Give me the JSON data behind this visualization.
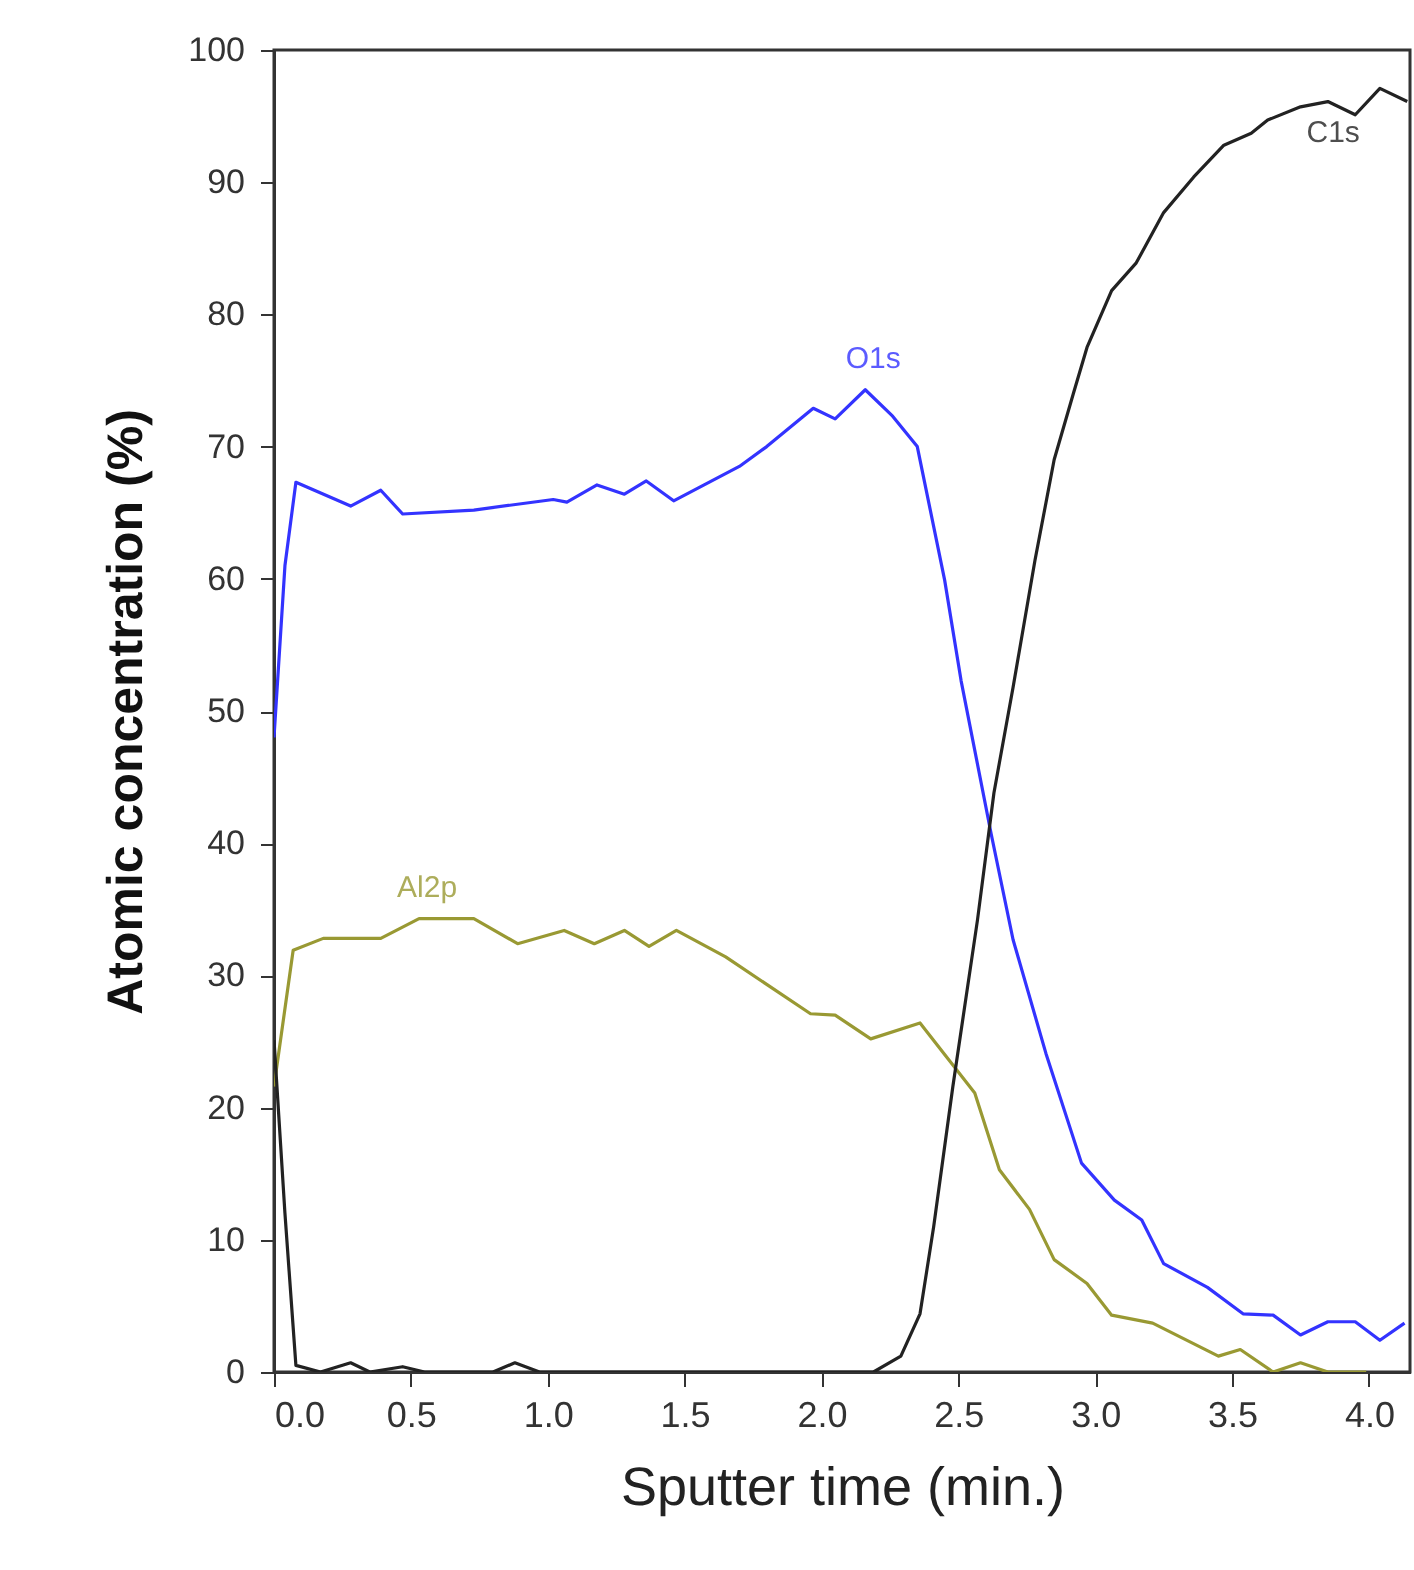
{
  "chart_data": {
    "type": "line",
    "xlabel": "Sputter time (min.)",
    "ylabel": "Atomic concentration (%)",
    "xlim": [
      0,
      4.15
    ],
    "ylim": [
      0,
      100
    ],
    "xticks": [
      {
        "value": 0,
        "label": "0.0"
      },
      0.5,
      {
        "value": 1,
        "label": "1.0"
      },
      1.5,
      {
        "value": 2,
        "label": "2.0"
      },
      2.5,
      {
        "value": 3,
        "label": "3.0"
      },
      3.5,
      {
        "value": 4,
        "label": "4.0"
      }
    ],
    "yticks": [
      0,
      10,
      20,
      30,
      40,
      50,
      60,
      70,
      80,
      90,
      100
    ],
    "grid": false,
    "series": [
      {
        "name": "O1s",
        "color": "#3333ff",
        "x": [
          0,
          0.04,
          0.08,
          0.28,
          0.39,
          0.47,
          0.73,
          1.02,
          1.07,
          1.18,
          1.28,
          1.36,
          1.46,
          1.7,
          1.8,
          1.97,
          2.05,
          2.16,
          2.26,
          2.35,
          2.45,
          2.51,
          2.62,
          2.7,
          2.82,
          2.95,
          3.07,
          3.17,
          3.25,
          3.41,
          3.54,
          3.65,
          3.75,
          3.85,
          3.95,
          4.04,
          4.13
        ],
        "values": [
          48,
          61,
          67.3,
          65.5,
          66.7,
          64.9,
          65.2,
          66,
          65.8,
          67.1,
          66.4,
          67.4,
          65.9,
          68.5,
          70,
          72.9,
          72.1,
          74.3,
          72.3,
          70,
          59.9,
          52.3,
          40.7,
          32.7,
          24.1,
          15.8,
          13,
          11.5,
          8.2,
          6.4,
          4.4,
          4.3,
          2.8,
          3.8,
          3.8,
          2.4,
          3.7
        ]
      },
      {
        "name": "Al2p",
        "color": "#999933",
        "x": [
          0,
          0.07,
          0.18,
          0.39,
          0.53,
          0.73,
          0.89,
          1.06,
          1.17,
          1.28,
          1.37,
          1.47,
          1.65,
          1.96,
          2.05,
          2.18,
          2.36,
          2.56,
          2.65,
          2.76,
          2.85,
          2.97,
          3.06,
          3.21,
          3.45,
          3.53,
          3.65,
          3.75,
          3.85,
          3.99
        ],
        "values": [
          21.6,
          31.9,
          32.8,
          32.8,
          34.3,
          34.3,
          32.4,
          33.4,
          32.4,
          33.4,
          32.2,
          33.4,
          31.4,
          27.1,
          27,
          25.2,
          26.4,
          21.1,
          15.3,
          12.3,
          8.5,
          6.7,
          4.3,
          3.7,
          1.2,
          1.7,
          0,
          0.7,
          0,
          0
        ]
      },
      {
        "name": "C1s",
        "color": "#222222",
        "x": [
          0,
          0.04,
          0.08,
          0.17,
          0.28,
          0.35,
          0.47,
          0.55,
          0.8,
          0.88,
          0.97,
          2.19,
          2.29,
          2.36,
          2.41,
          2.48,
          2.57,
          2.63,
          2.7,
          2.78,
          2.85,
          2.92,
          2.97,
          3.06,
          3.15,
          3.25,
          3.36,
          3.47,
          3.57,
          3.63,
          3.75,
          3.85,
          3.95,
          4.04,
          4.14
        ],
        "values": [
          25.1,
          12,
          0.5,
          0,
          0.7,
          0,
          0.4,
          0,
          0,
          0.7,
          0,
          0,
          1.2,
          4.4,
          11,
          21.6,
          34.2,
          43.8,
          51.8,
          61.4,
          69,
          74,
          77.5,
          81.8,
          83.9,
          87.7,
          90.4,
          92.8,
          93.7,
          94.7,
          95.7,
          96.1,
          95.1,
          97.1,
          96.1
        ]
      }
    ]
  }
}
